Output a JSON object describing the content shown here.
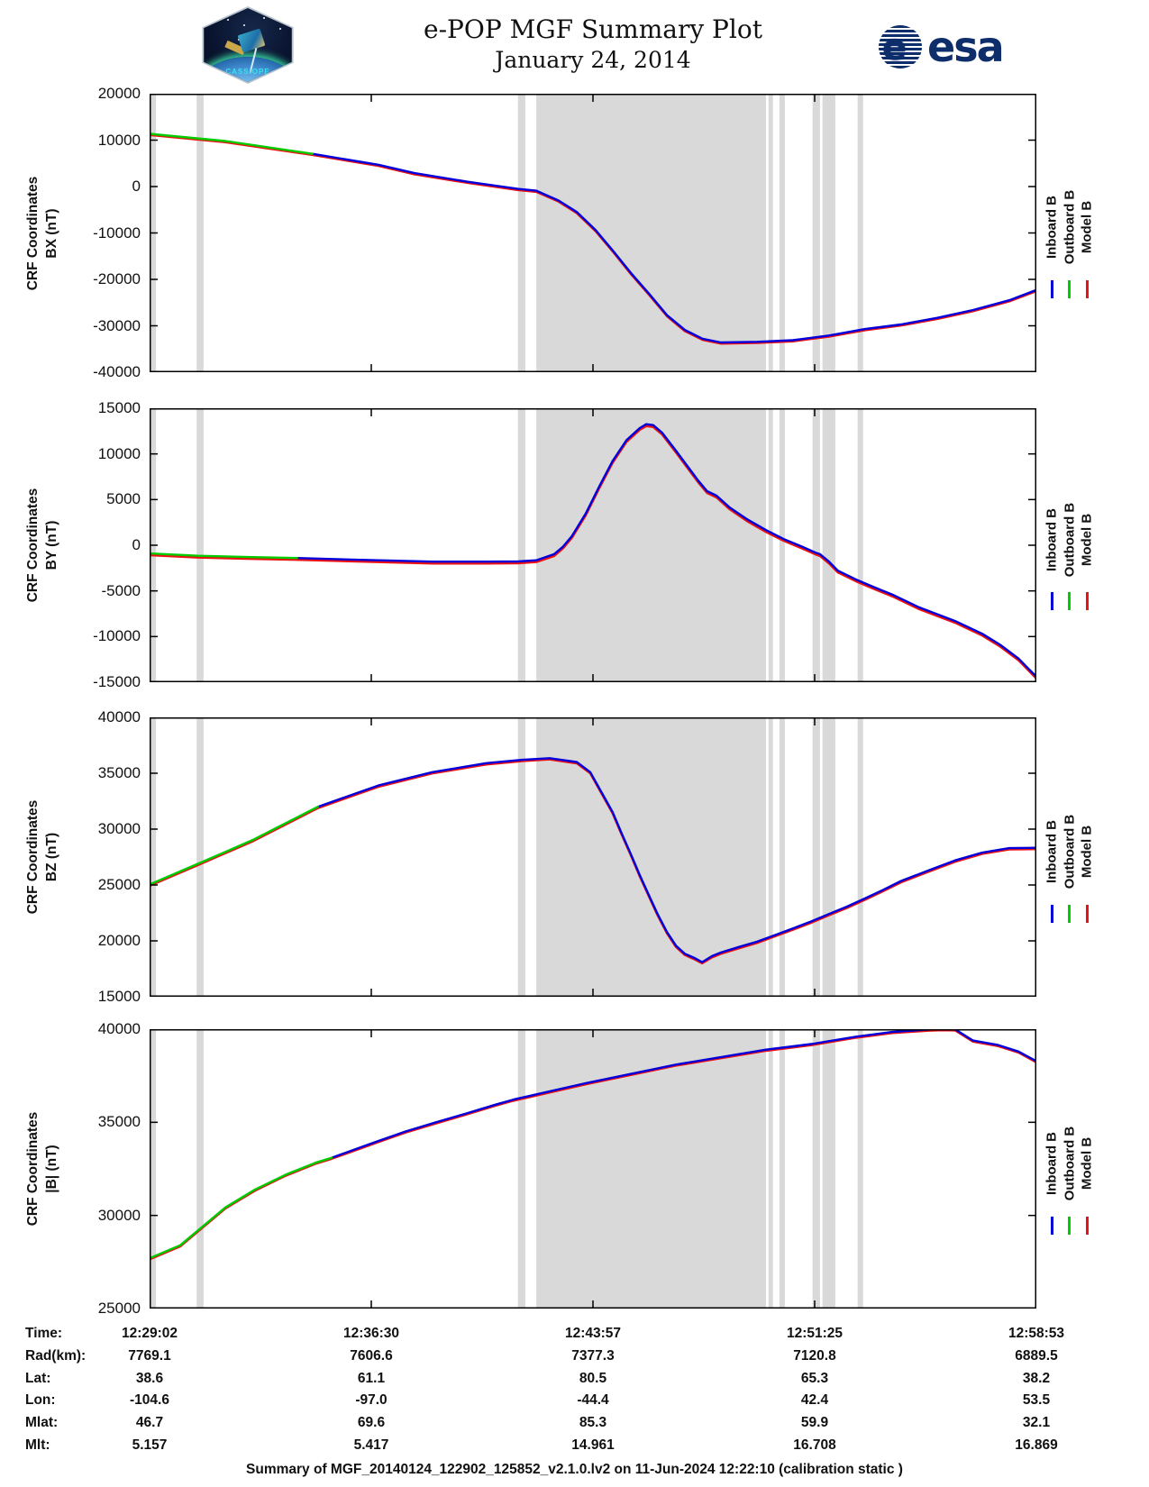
{
  "header": {
    "title": "e-POP MGF Summary Plot",
    "date": "January 24, 2014",
    "patch_text": "CASSIOPE",
    "esa_text": "esa"
  },
  "colors": {
    "inboard": "#0000dd",
    "outboard": "#00cc00",
    "model": "#ee1111",
    "gap_band": "#d9d9d9",
    "frame": "#000000"
  },
  "legend": {
    "entries": [
      {
        "label": "Inboard B",
        "color": "#0000dd"
      },
      {
        "label": "Outboard B",
        "color": "#00cc00"
      },
      {
        "label": "Model B",
        "color": "#ee1111"
      }
    ]
  },
  "chart_data": [
    {
      "type": "line",
      "ylabel_line1": "CRF Coordinates",
      "ylabel_line2": "BX (nT)",
      "ylim": [
        -40000,
        20000
      ],
      "yticks": [
        20000,
        10000,
        0,
        -10000,
        -20000,
        -30000,
        -40000
      ],
      "x_span_s": 1791,
      "xticks": [
        "12:29:02",
        "12:36:30",
        "12:43:57",
        "12:51:25",
        "12:58:53"
      ],
      "outboard_end_s": 329,
      "model_offset_nT": -250,
      "gap_bands_s": [
        [
          0,
          13
        ],
        [
          95,
          109
        ],
        [
          744,
          759
        ],
        [
          781,
          1245
        ],
        [
          1250,
          1259
        ],
        [
          1272,
          1283
        ],
        [
          1339,
          1354
        ],
        [
          1359,
          1385
        ],
        [
          1430,
          1441
        ]
      ],
      "curve_points": [
        [
          0,
          11350
        ],
        [
          153,
          9800
        ],
        [
          329,
          7040
        ],
        [
          462,
          4700
        ],
        [
          535,
          2900
        ],
        [
          644,
          1000
        ],
        [
          744,
          -500
        ],
        [
          781,
          -900
        ],
        [
          826,
          -3000
        ],
        [
          863,
          -5500
        ],
        [
          901,
          -9400
        ],
        [
          935,
          -13700
        ],
        [
          972,
          -18600
        ],
        [
          1008,
          -23000
        ],
        [
          1045,
          -27700
        ],
        [
          1081,
          -30900
        ],
        [
          1117,
          -32800
        ],
        [
          1154,
          -33600
        ],
        [
          1227,
          -33450
        ],
        [
          1299,
          -33100
        ],
        [
          1372,
          -32100
        ],
        [
          1445,
          -30700
        ],
        [
          1518,
          -29700
        ],
        [
          1591,
          -28300
        ],
        [
          1663,
          -26600
        ],
        [
          1736,
          -24500
        ],
        [
          1791,
          -22300
        ]
      ]
    },
    {
      "type": "line",
      "ylabel_line1": "CRF Coordinates",
      "ylabel_line2": "BY (nT)",
      "ylim": [
        -15000,
        15000
      ],
      "yticks": [
        15000,
        10000,
        5000,
        0,
        -5000,
        -10000,
        -15000
      ],
      "x_span_s": 1791,
      "xticks": [
        "12:29:02",
        "12:36:30",
        "12:43:57",
        "12:51:25",
        "12:58:53"
      ],
      "outboard_end_s": 298,
      "model_offset_nT": -200,
      "gap_bands_s": [
        [
          0,
          13
        ],
        [
          95,
          109
        ],
        [
          744,
          759
        ],
        [
          781,
          1245
        ],
        [
          1250,
          1259
        ],
        [
          1272,
          1283
        ],
        [
          1339,
          1354
        ],
        [
          1359,
          1385
        ],
        [
          1430,
          1441
        ]
      ],
      "curve_points": [
        [
          0,
          -900
        ],
        [
          98,
          -1150
        ],
        [
          207,
          -1300
        ],
        [
          298,
          -1400
        ],
        [
          426,
          -1600
        ],
        [
          571,
          -1800
        ],
        [
          680,
          -1800
        ],
        [
          744,
          -1780
        ],
        [
          781,
          -1650
        ],
        [
          817,
          -980
        ],
        [
          835,
          -150
        ],
        [
          853,
          1000
        ],
        [
          881,
          3470
        ],
        [
          908,
          6420
        ],
        [
          935,
          9210
        ],
        [
          963,
          11500
        ],
        [
          990,
          12830
        ],
        [
          1003,
          13250
        ],
        [
          1017,
          13150
        ],
        [
          1035,
          12340
        ],
        [
          1063,
          10360
        ],
        [
          1090,
          8390
        ],
        [
          1108,
          7080
        ],
        [
          1126,
          5925
        ],
        [
          1145,
          5430
        ],
        [
          1172,
          4120
        ],
        [
          1208,
          2800
        ],
        [
          1245,
          1655
        ],
        [
          1281,
          670
        ],
        [
          1318,
          -160
        ],
        [
          1345,
          -810
        ],
        [
          1354,
          -980
        ],
        [
          1372,
          -1790
        ],
        [
          1390,
          -2780
        ],
        [
          1427,
          -3760
        ],
        [
          1463,
          -4590
        ],
        [
          1500,
          -5400
        ],
        [
          1554,
          -6800
        ],
        [
          1627,
          -8300
        ],
        [
          1682,
          -9700
        ],
        [
          1718,
          -10900
        ],
        [
          1755,
          -12400
        ],
        [
          1791,
          -14400
        ]
      ]
    },
    {
      "type": "line",
      "ylabel_line1": "CRF Coordinates",
      "ylabel_line2": "BZ (nT)",
      "ylim": [
        15000,
        40000
      ],
      "yticks": [
        40000,
        35000,
        30000,
        25000,
        20000,
        15000
      ],
      "x_span_s": 1791,
      "xticks": [
        "12:29:02",
        "12:36:30",
        "12:43:57",
        "12:51:25",
        "12:58:53"
      ],
      "outboard_end_s": 340,
      "model_offset_nT": -120,
      "gap_bands_s": [
        [
          0,
          13
        ],
        [
          95,
          109
        ],
        [
          744,
          759
        ],
        [
          781,
          1245
        ],
        [
          1250,
          1259
        ],
        [
          1272,
          1283
        ],
        [
          1339,
          1354
        ],
        [
          1359,
          1385
        ],
        [
          1430,
          1441
        ]
      ],
      "curve_points": [
        [
          0,
          25050
        ],
        [
          98,
          26900
        ],
        [
          207,
          29000
        ],
        [
          340,
          32000
        ],
        [
          462,
          33900
        ],
        [
          571,
          35100
        ],
        [
          680,
          35900
        ],
        [
          753,
          36200
        ],
        [
          808,
          36350
        ],
        [
          863,
          36000
        ],
        [
          890,
          35100
        ],
        [
          935,
          31540
        ],
        [
          953,
          29660
        ],
        [
          972,
          27770
        ],
        [
          990,
          25890
        ],
        [
          1008,
          24140
        ],
        [
          1026,
          22400
        ],
        [
          1045,
          20790
        ],
        [
          1063,
          19580
        ],
        [
          1081,
          18850
        ],
        [
          1099,
          18500
        ],
        [
          1116,
          18100
        ],
        [
          1136,
          18640
        ],
        [
          1154,
          18960
        ],
        [
          1190,
          19450
        ],
        [
          1227,
          19930
        ],
        [
          1263,
          20520
        ],
        [
          1299,
          21115
        ],
        [
          1336,
          21730
        ],
        [
          1372,
          22400
        ],
        [
          1409,
          23075
        ],
        [
          1445,
          23800
        ],
        [
          1481,
          24550
        ],
        [
          1518,
          25360
        ],
        [
          1573,
          26300
        ],
        [
          1627,
          27200
        ],
        [
          1682,
          27900
        ],
        [
          1736,
          28300
        ],
        [
          1791,
          28330
        ]
      ]
    },
    {
      "type": "line",
      "ylabel_line1": "CRF Coordinates",
      "ylabel_line2": "|B| (nT)",
      "ylim": [
        25000,
        40000
      ],
      "yticks": [
        40000,
        35000,
        30000,
        25000
      ],
      "x_span_s": 1791,
      "xticks": [
        "12:29:02",
        "12:36:30",
        "12:43:57",
        "12:51:25",
        "12:58:53"
      ],
      "outboard_end_s": 368,
      "model_offset_nT": -60,
      "gap_bands_s": [
        [
          0,
          13
        ],
        [
          95,
          109
        ],
        [
          744,
          759
        ],
        [
          781,
          1245
        ],
        [
          1250,
          1259
        ],
        [
          1272,
          1283
        ],
        [
          1339,
          1354
        ],
        [
          1359,
          1385
        ],
        [
          1430,
          1441
        ]
      ],
      "curve_points": [
        [
          0,
          27700
        ],
        [
          62,
          28400
        ],
        [
          153,
          30430
        ],
        [
          213,
          31390
        ],
        [
          275,
          32190
        ],
        [
          335,
          32830
        ],
        [
          368,
          33100
        ],
        [
          457,
          33950
        ],
        [
          517,
          34510
        ],
        [
          577,
          34990
        ],
        [
          639,
          35470
        ],
        [
          699,
          35950
        ],
        [
          735,
          36220
        ],
        [
          881,
          37100
        ],
        [
          1063,
          38100
        ],
        [
          1245,
          38900
        ],
        [
          1336,
          39200
        ],
        [
          1427,
          39600
        ],
        [
          1500,
          39850
        ],
        [
          1573,
          39980
        ],
        [
          1600,
          40000
        ],
        [
          1627,
          39990
        ],
        [
          1663,
          39390
        ],
        [
          1714,
          39150
        ],
        [
          1755,
          38800
        ],
        [
          1791,
          38280
        ]
      ]
    }
  ],
  "table": {
    "rows": [
      {
        "label": "Time:",
        "values": [
          "12:29:02",
          "12:36:30",
          "12:43:57",
          "12:51:25",
          "12:58:53"
        ]
      },
      {
        "label": "Rad(km):",
        "values": [
          "7769.1",
          "7606.6",
          "7377.3",
          "7120.8",
          "6889.5"
        ]
      },
      {
        "label": "Lat:",
        "values": [
          "38.6",
          "61.1",
          "80.5",
          "65.3",
          "38.2"
        ]
      },
      {
        "label": "Lon:",
        "values": [
          "-104.6",
          "-97.0",
          "-44.4",
          "42.4",
          "53.5"
        ]
      },
      {
        "label": "Mlat:",
        "values": [
          "46.7",
          "69.6",
          "85.3",
          "59.9",
          "32.1"
        ]
      },
      {
        "label": "Mlt:",
        "values": [
          "5.157",
          "5.417",
          "14.961",
          "16.708",
          "16.869"
        ]
      }
    ]
  },
  "footer": {
    "text": "Summary of MGF_20140124_122902_125852_v2.1.0.lv2 on 11-Jun-2024 12:22:10 (calibration static )"
  }
}
